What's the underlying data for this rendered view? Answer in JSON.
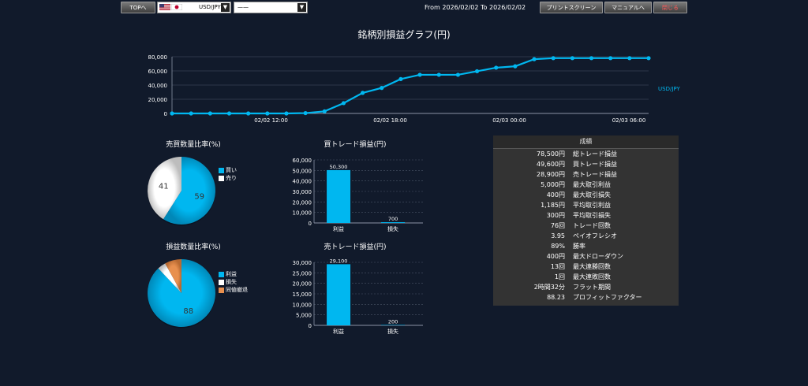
{
  "toolbar": {
    "top_label": "TOPへ",
    "pair_value": "USD/JPY",
    "second_value": "——",
    "range_text": "From 2026/02/02 To 2026/02/02",
    "print_label": "プリントスクリーン",
    "manual_label": "マニュアルへ",
    "close_label": "閉じる",
    "close_color": "#ff5a5a"
  },
  "accent": "#00b7f0",
  "chart_data": [
    {
      "type": "line",
      "title": "銘柄別損益グラフ(円)",
      "x_ticks": [
        "02/02 12:00",
        "02/02 18:00",
        "02/03 00:00",
        "02/03 06:00"
      ],
      "y_ticks": [
        "0",
        "20,000",
        "40,000",
        "60,000",
        "80,000"
      ],
      "ylim": [
        0,
        80000
      ],
      "grid": true,
      "legend_position": "right",
      "series": [
        {
          "name": "USD/JPY",
          "color": "#00b7f0",
          "values": [
            0,
            0,
            0,
            0,
            0,
            0,
            0,
            500,
            3000,
            14500,
            29000,
            36000,
            48500,
            54500,
            54500,
            54500,
            59500,
            64500,
            66500,
            76500,
            78000,
            78000,
            78000,
            78000,
            78000,
            78000
          ]
        }
      ]
    },
    {
      "type": "pie",
      "title": "売買数量比率(%)",
      "labels": [
        "買い",
        "売り"
      ],
      "values": [
        59,
        41
      ],
      "colors": [
        "#00b7f0",
        "#ffffff"
      ],
      "legend_position": "right"
    },
    {
      "type": "pie",
      "title": "損益数量比率(%)",
      "labels": [
        "利益",
        "損失",
        "同値撤退"
      ],
      "values": [
        88,
        4,
        8
      ],
      "value_labels": [
        "88",
        "",
        ""
      ],
      "colors": [
        "#00b7f0",
        "#ffffff",
        "#e8904f"
      ],
      "legend_position": "right"
    },
    {
      "type": "bar",
      "title": "買トレード損益(円)",
      "categories": [
        "利益",
        "損失"
      ],
      "values": [
        50300,
        700
      ],
      "value_labels": [
        "50,300",
        "700"
      ],
      "y_ticks": [
        "0",
        "10,000",
        "20,000",
        "30,000",
        "40,000",
        "50,000",
        "60,000"
      ],
      "ylim": [
        0,
        60000
      ]
    },
    {
      "type": "bar",
      "title": "売トレード損益(円)",
      "categories": [
        "利益",
        "損失"
      ],
      "values": [
        29100,
        200
      ],
      "value_labels": [
        "29,100",
        "200"
      ],
      "y_ticks": [
        "0",
        "5,000",
        "10,000",
        "15,000",
        "20,000",
        "25,000",
        "30,000"
      ],
      "ylim": [
        0,
        30000
      ]
    }
  ],
  "stats": {
    "header": "成績",
    "rows": [
      {
        "value": "78,500円",
        "label": "総トレード損益"
      },
      {
        "value": "49,600円",
        "label": "買トレード損益"
      },
      {
        "value": "28,900円",
        "label": "売トレード損益"
      },
      {
        "value": "5,000円",
        "label": "最大取引利益"
      },
      {
        "value": "400円",
        "label": "最大取引損失"
      },
      {
        "value": "1,185円",
        "label": "平均取引利益"
      },
      {
        "value": "300円",
        "label": "平均取引損失"
      },
      {
        "value": "76回",
        "label": "トレード回数"
      },
      {
        "value": "3.95",
        "label": "ペイオフレシオ"
      },
      {
        "value": "89%",
        "label": "勝率"
      },
      {
        "value": "400円",
        "label": "最大ドローダウン"
      },
      {
        "value": "13回",
        "label": "最大連勝回数"
      },
      {
        "value": "1回",
        "label": "最大連敗回数"
      },
      {
        "value": "2時間32分",
        "label": "フラット期間"
      },
      {
        "value": "88.23",
        "label": "プロフィットファクター"
      }
    ]
  }
}
